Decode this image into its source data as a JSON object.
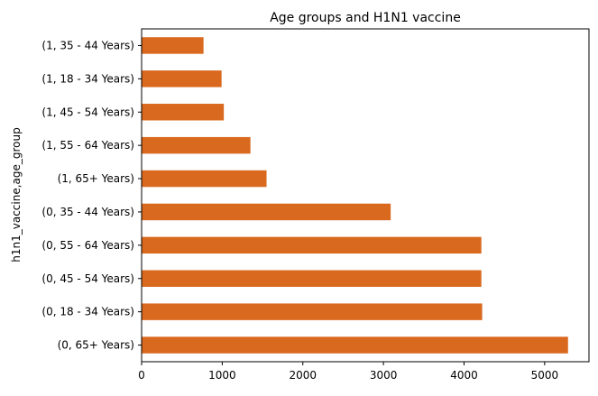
{
  "chart_data": {
    "type": "bar",
    "orientation": "horizontal",
    "title": "Age groups and H1N1 vaccine",
    "xlabel": "",
    "ylabel": "h1n1_vaccine,age_group",
    "categories": [
      "(1, 35 - 44 Years)",
      "(1, 18 - 34 Years)",
      "(1, 45 - 54 Years)",
      "(1, 55 - 64 Years)",
      "(1, 65+ Years)",
      "(0, 35 - 44 Years)",
      "(0, 55 - 64 Years)",
      "(0, 45 - 54 Years)",
      "(0, 18 - 34 Years)",
      "(0, 65+ Years)"
    ],
    "values": [
      768,
      992,
      1020,
      1350,
      1550,
      3090,
      4215,
      4215,
      4225,
      5290
    ],
    "xlim": [
      0,
      5550
    ],
    "xticks": [
      0,
      1000,
      2000,
      3000,
      4000,
      5000
    ],
    "grid": false,
    "bar_color": "#d9691f"
  }
}
